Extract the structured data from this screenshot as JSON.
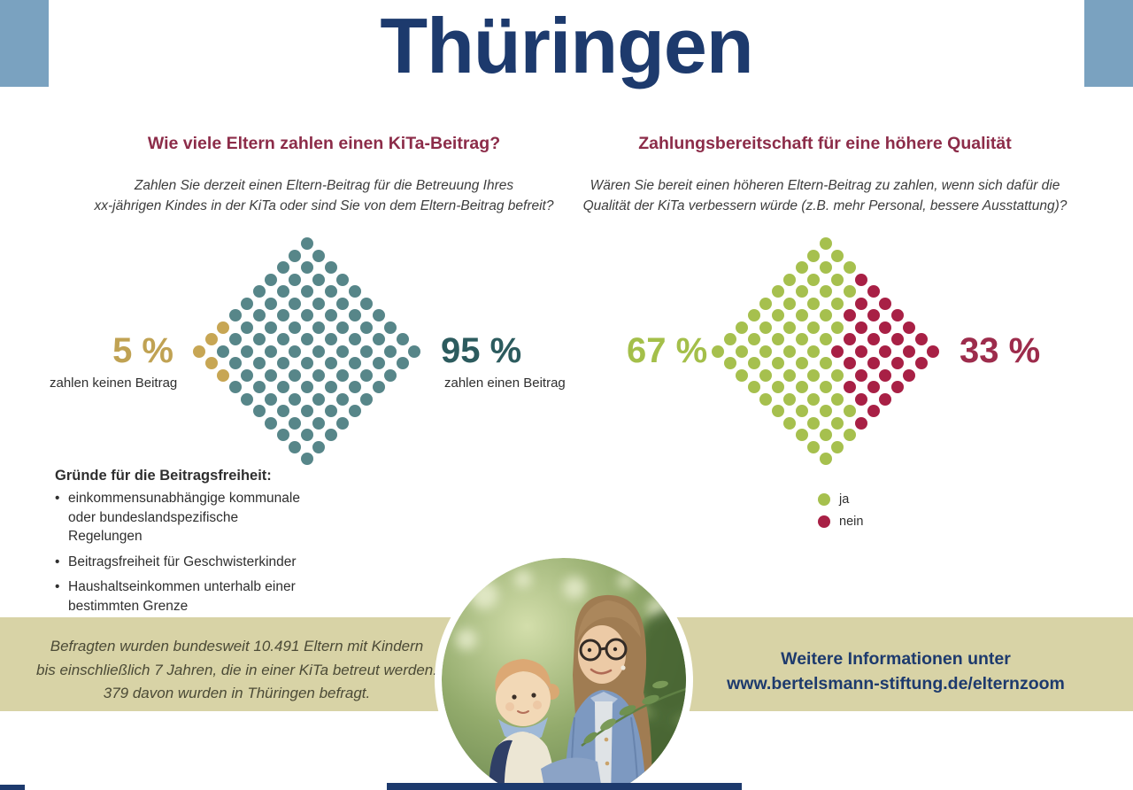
{
  "page": {
    "title": "Thüringen",
    "colors": {
      "navy": "#1d3a6d",
      "corner_blue": "#7aa2c0",
      "beige": "#d8d3a6",
      "maroon": "#8c2c49"
    }
  },
  "left_chart": {
    "heading": "Wie viele Eltern zahlen einen KiTa-Beitrag?",
    "question": [
      "Zahlen Sie derzeit einen Eltern-Beitrag für die Betreuung Ihres",
      "xx-jährigen Kindes in der KiTa oder sind Sie von dem Eltern-Beitrag befreit?"
    ],
    "left_value": "5 %",
    "left_value_color": "#c0a253",
    "left_label": "zahlen keinen Beitrag",
    "right_value": "95 %",
    "right_value_color": "#2c5b5e",
    "right_label": "zahlen einen Beitrag"
  },
  "right_chart": {
    "heading": "Zahlungsbereitschaft für eine höhere Qualität",
    "question": [
      "Wären Sie bereit einen höheren Eltern-Beitrag zu zahlen, wenn sich dafür die",
      "Qualität der KiTa verbessern würde (z.B. mehr Personal, bessere Ausstattung)?"
    ],
    "left_value": "67 %",
    "left_value_color": "#a4bf4a",
    "right_value": "33 %",
    "right_value_color": "#9d2c4c",
    "legend": [
      {
        "label": "ja",
        "color": "#a6c04e"
      },
      {
        "label": "nein",
        "color": "#a82045"
      }
    ]
  },
  "reasons": {
    "heading": "Gründe für die Beitragsfreiheit:",
    "items": [
      "einkommensunabhängige kommunale oder bundeslandspezifische Regelungen",
      "Beitragsfreiheit für Geschwisterkinder",
      "Haushaltseinkommen unterhalb einer bestimmten Grenze"
    ]
  },
  "footer": {
    "survey_lines": [
      "Befragten wurden bundesweit 10.491 Eltern mit Kindern",
      "bis einschließlich 7 Jahren, die in einer KiTa betreut werden.",
      "379 davon wurden in Thüringen befragt."
    ],
    "info_lines": [
      "Weitere Informationen unter",
      "www.bertelsmann-stiftung.de/elternzoom"
    ]
  },
  "chart_data": [
    {
      "type": "waffle",
      "shape": "rotated-10x10-diamond",
      "title": "Wie viele Eltern zahlen einen KiTa-Beitrag?",
      "question": "Zahlen Sie derzeit einen Eltern-Beitrag für die Betreuung Ihres xx-jährigen Kindes in der KiTa oder sind Sie von dem Eltern-Beitrag befreit?",
      "total_dots": 100,
      "series": [
        {
          "name": "zahlen keinen Beitrag",
          "value_pct": 5,
          "color": "#c7a654"
        },
        {
          "name": "zahlen einen Beitrag",
          "value_pct": 95,
          "color": "#578689"
        }
      ],
      "minority_series": 0,
      "minority_side": "left",
      "row_totals": [
        1,
        2,
        3,
        4,
        5,
        6,
        7,
        8,
        9,
        10,
        9,
        8,
        7,
        6,
        5,
        4,
        3,
        2,
        1
      ],
      "minority_per_row": [
        0,
        0,
        0,
        0,
        0,
        0,
        0,
        1,
        1,
        1,
        1,
        1,
        0,
        0,
        0,
        0,
        0,
        0,
        0
      ]
    },
    {
      "type": "waffle",
      "shape": "rotated-10x10-diamond",
      "title": "Zahlungsbereitschaft für eine höhere Qualität",
      "question": "Wären Sie bereit einen höheren Eltern-Beitrag zu zahlen, wenn sich dafür die Qualität der KiTa verbessern würde (z.B. mehr Personal, bessere Ausstattung)?",
      "total_dots": 100,
      "series": [
        {
          "name": "ja",
          "value_pct": 67,
          "color": "#a6c04e"
        },
        {
          "name": "nein",
          "value_pct": 33,
          "color": "#a82045"
        }
      ],
      "minority_series": 1,
      "minority_side": "right",
      "row_totals": [
        1,
        2,
        3,
        4,
        5,
        6,
        7,
        8,
        9,
        10,
        9,
        8,
        7,
        6,
        5,
        4,
        3,
        2,
        1
      ],
      "minority_per_row": [
        0,
        0,
        0,
        1,
        1,
        2,
        3,
        3,
        4,
        5,
        4,
        3,
        3,
        2,
        1,
        1,
        0,
        0,
        0
      ]
    }
  ]
}
